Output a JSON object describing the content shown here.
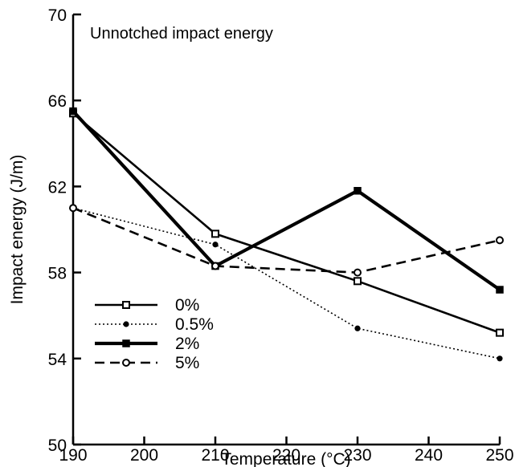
{
  "chart_data": {
    "type": "line",
    "title": "Unnotched impact energy",
    "xlabel": "Temperature (°C)",
    "ylabel": "Impact energy (J/m)",
    "xlim": [
      190,
      250
    ],
    "ylim": [
      50,
      70
    ],
    "xticks": [
      "190",
      "200",
      "210",
      "220",
      "230",
      "240",
      "250"
    ],
    "yticks": [
      "50",
      "54",
      "58",
      "62",
      "66",
      "70"
    ],
    "grid": false,
    "legend_position": "lower-left",
    "x": [
      190,
      210,
      230,
      250
    ],
    "series": [
      {
        "name": "0%",
        "values": [
          65.4,
          59.8,
          57.6,
          55.2
        ],
        "line_style": "solid",
        "line_weight": "medium",
        "marker": "open-square"
      },
      {
        "name": "0.5%",
        "values": [
          61.0,
          59.3,
          55.4,
          54.0
        ],
        "line_style": "dotted",
        "line_weight": "thin",
        "marker": "filled-circle"
      },
      {
        "name": "2%",
        "values": [
          65.5,
          58.3,
          61.8,
          57.2
        ],
        "line_style": "solid",
        "line_weight": "thick",
        "marker": "filled-square"
      },
      {
        "name": "5%",
        "values": [
          61.0,
          58.3,
          58.0,
          59.5
        ],
        "line_style": "dashed",
        "line_weight": "medium",
        "marker": "open-circle"
      }
    ],
    "colors": {
      "line": "#000000",
      "background": "#ffffff"
    }
  }
}
